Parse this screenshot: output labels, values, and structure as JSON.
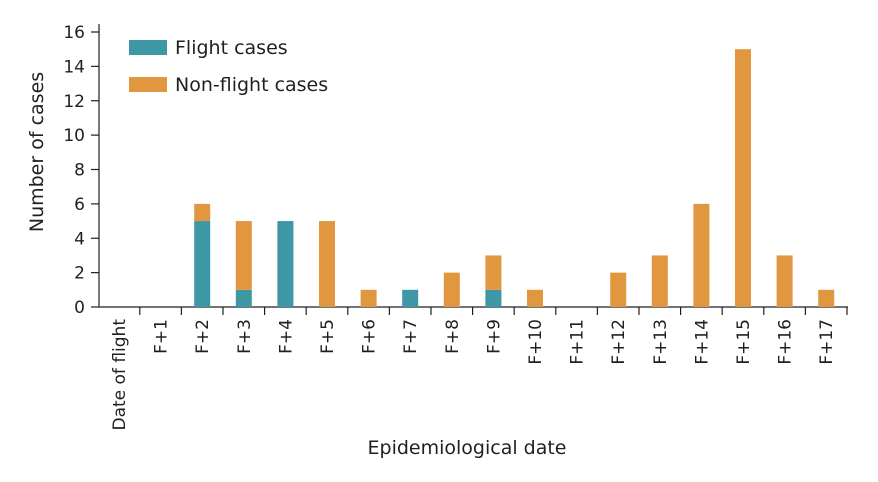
{
  "chart_data": {
    "type": "bar",
    "stacked": true,
    "xlabel": "Epidemiological date",
    "ylabel": "Number of cases",
    "ylim": [
      0,
      16
    ],
    "yticks": [
      0,
      2,
      4,
      6,
      8,
      10,
      12,
      14,
      16
    ],
    "grid": false,
    "legend_position": "top-left",
    "categories": [
      "Date of flight",
      "F+1",
      "F+2",
      "F+3",
      "F+4",
      "F+5",
      "F+6",
      "F+7",
      "F+8",
      "F+9",
      "F+10",
      "F+11",
      "F+12",
      "F+13",
      "F+14",
      "F+15",
      "F+16",
      "F+17"
    ],
    "series": [
      {
        "name": "Flight cases",
        "color": "#3d97a5",
        "values": [
          0,
          0,
          5,
          1,
          5,
          0,
          0,
          1,
          0,
          1,
          0,
          0,
          0,
          0,
          0,
          0,
          0,
          0
        ]
      },
      {
        "name": "Non-flight cases",
        "color": "#e0973f",
        "values": [
          0,
          0,
          1,
          4,
          0,
          5,
          1,
          0,
          2,
          2,
          1,
          0,
          2,
          3,
          6,
          15,
          3,
          1
        ]
      }
    ]
  }
}
